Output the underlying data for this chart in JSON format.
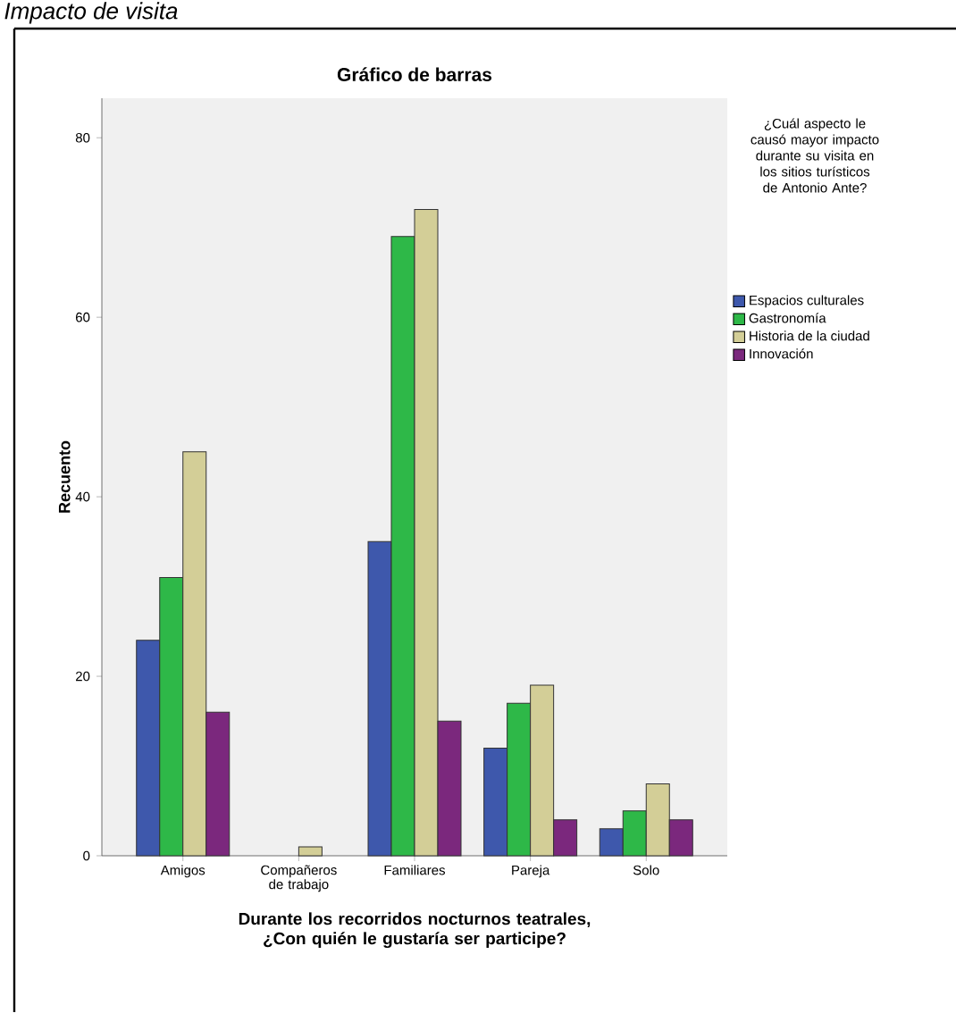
{
  "chart_data": {
    "type": "bar",
    "title": "Gráfico de barras",
    "xlabel": "Durante los recorridos nocturnos teatrales, ¿Con quién le gustaría ser participe?",
    "ylabel": "Recuento",
    "legend_title": "¿Cuál aspecto le causó mayor impacto durante su visita en los sitios turísticos de Antonio Ante?",
    "annotations": [
      "Impacto de visita"
    ],
    "categories": [
      "Amigos",
      "Compañeros de trabajo",
      "Familiares",
      "Pareja",
      "Solo"
    ],
    "series": [
      {
        "name": "Espacios culturales",
        "color": "#3e58ac",
        "values": [
          24,
          null,
          35,
          12,
          3
        ]
      },
      {
        "name": "Gastronomía",
        "color": "#2eb848",
        "values": [
          31,
          null,
          69,
          17,
          5
        ]
      },
      {
        "name": "Historia de la ciudad",
        "color": "#d3ce97",
        "values": [
          45,
          1,
          72,
          19,
          8
        ]
      },
      {
        "name": "Innovación",
        "color": "#7b287d",
        "values": [
          16,
          null,
          15,
          4,
          4
        ]
      }
    ],
    "ylim": [
      0,
      84.4
    ],
    "yticks": [
      0,
      20,
      40,
      60,
      80
    ],
    "legend": "right"
  }
}
